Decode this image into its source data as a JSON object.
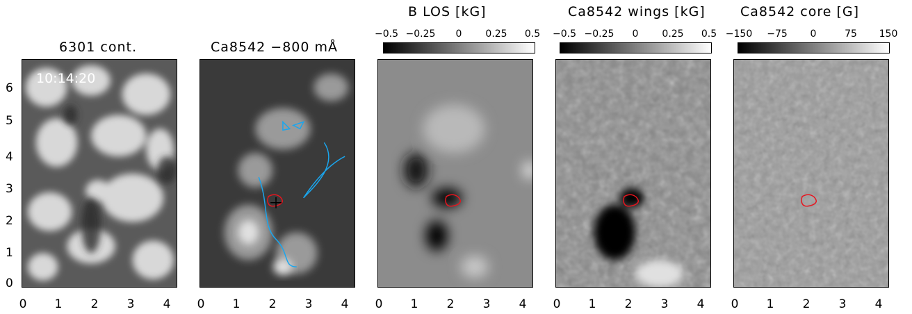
{
  "panels": [
    {
      "title": "6301 cont.",
      "type": "continuum"
    },
    {
      "title": "Ca8542 −800 mÅ",
      "type": "ca_wing"
    },
    {
      "title": "B LOS [kG]",
      "type": "blos",
      "colorbar": {
        "labels": [
          "−0.5",
          "−0.25",
          "0",
          "0.25",
          "0.5"
        ],
        "min": -0.5,
        "max": 0.5
      }
    },
    {
      "title": "Ca8542 wings [kG]",
      "type": "wings",
      "colorbar": {
        "labels": [
          "−0.5",
          "−0.25",
          "0",
          "0.25",
          "0.5"
        ],
        "min": -0.5,
        "max": 0.5
      }
    },
    {
      "title": "Ca8542 core [G]",
      "type": "core",
      "colorbar": {
        "labels": [
          "−150",
          "−75",
          "0",
          "75",
          "150"
        ],
        "min": -150,
        "max": 150
      }
    }
  ],
  "timestamp": "10:14:20",
  "x_ticks": [
    "0",
    "1",
    "2",
    "3",
    "4"
  ],
  "y_ticks": [
    "0",
    "1",
    "2",
    "3",
    "4",
    "5",
    "6"
  ],
  "colors": {
    "contour_red": "#e8141e",
    "contour_blue": "#1aa6ee"
  }
}
